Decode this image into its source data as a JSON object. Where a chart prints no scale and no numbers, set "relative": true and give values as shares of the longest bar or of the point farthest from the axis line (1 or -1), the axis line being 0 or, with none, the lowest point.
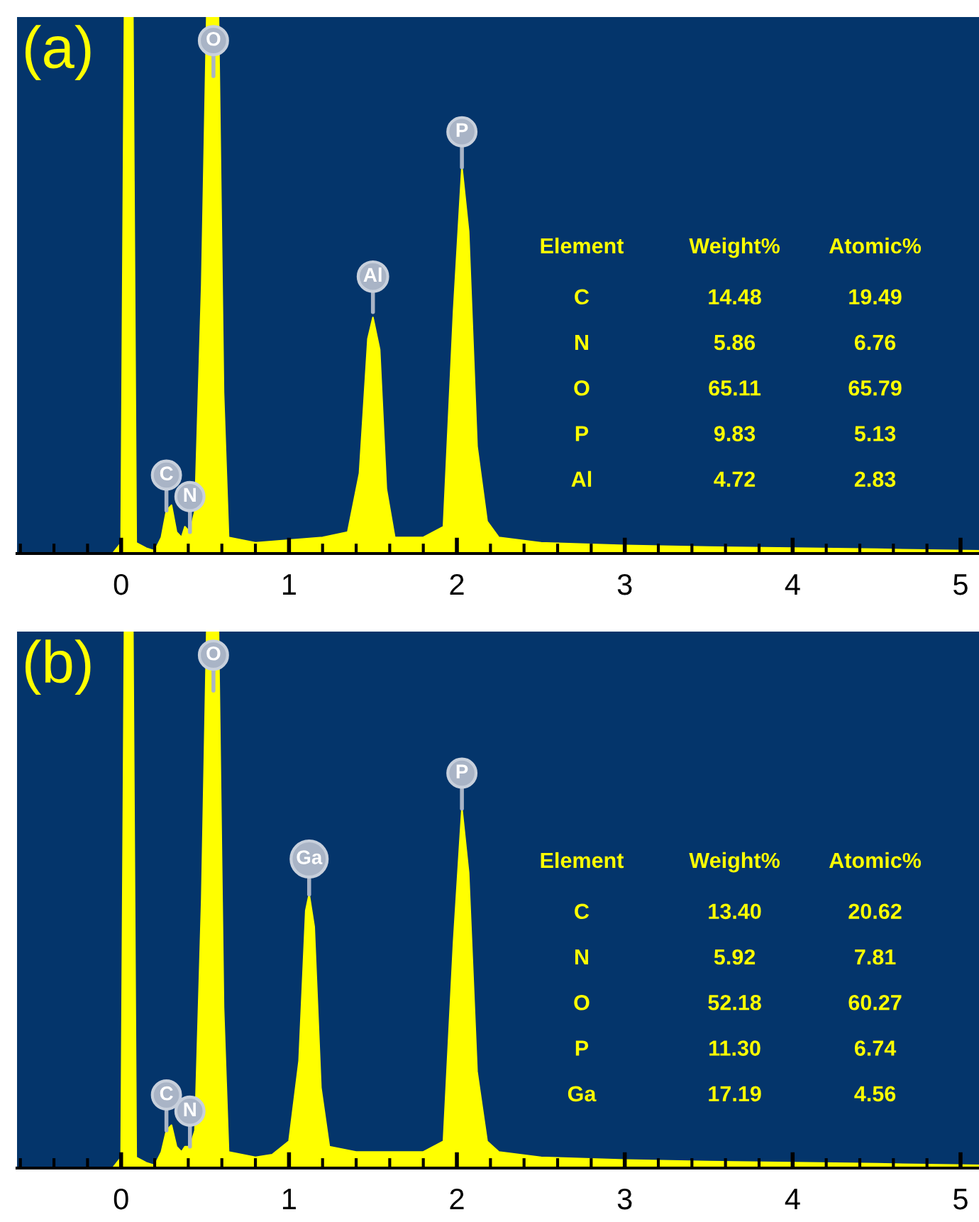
{
  "chart_data": [
    {
      "type": "area",
      "title": "(a)",
      "relative": true,
      "color": "#ffff00",
      "x": [
        -0.62,
        -0.05,
        0.0,
        0.02,
        0.07,
        0.09,
        0.15,
        0.2,
        0.24,
        0.27,
        0.3,
        0.33,
        0.36,
        0.38,
        0.41,
        0.44,
        0.48,
        0.51,
        0.58,
        0.61,
        0.64,
        0.8,
        1.0,
        1.2,
        1.35,
        1.42,
        1.47,
        1.5,
        1.54,
        1.58,
        1.63,
        1.8,
        1.92,
        1.98,
        2.03,
        2.07,
        2.12,
        2.18,
        2.25,
        2.5,
        3.0,
        3.5,
        4.0,
        4.5,
        5.11
      ],
      "values": [
        0,
        0,
        0.02,
        1.0,
        1.0,
        0.02,
        0.01,
        0.005,
        0.03,
        0.08,
        0.09,
        0.04,
        0.03,
        0.05,
        0.04,
        0.08,
        0.5,
        1.0,
        1.0,
        0.3,
        0.03,
        0.02,
        0.025,
        0.03,
        0.04,
        0.15,
        0.4,
        0.44,
        0.38,
        0.12,
        0.03,
        0.03,
        0.05,
        0.45,
        0.72,
        0.6,
        0.2,
        0.06,
        0.03,
        0.02,
        0.015,
        0.012,
        0.01,
        0.008,
        0.005
      ],
      "xlim": [
        -0.62,
        5.11
      ],
      "xticks": [
        0,
        1,
        2,
        3,
        4,
        5
      ],
      "tick_labels": "x",
      "annotations": [
        {
          "text": "O",
          "x": 0.55,
          "y": 0.89
        },
        {
          "text": "C",
          "x": 0.27,
          "y": 0.08
        },
        {
          "text": "N",
          "x": 0.41,
          "y": 0.04
        },
        {
          "text": "Al",
          "x": 1.5,
          "y": 0.45
        },
        {
          "text": "P",
          "x": 2.03,
          "y": 0.72
        },
        "Element",
        "Weight%",
        "Atomic%",
        "C",
        "14.48",
        "19.49",
        "N",
        "5.86",
        "6.76",
        "O",
        "65.11",
        "65.79",
        "P",
        "9.83",
        "5.13",
        "Al",
        "4.72",
        "2.83"
      ]
    },
    {
      "type": "area",
      "title": "(b)",
      "relative": true,
      "color": "#ffff00",
      "x": [
        -0.62,
        -0.05,
        0.0,
        0.02,
        0.07,
        0.09,
        0.15,
        0.2,
        0.24,
        0.27,
        0.3,
        0.33,
        0.36,
        0.38,
        0.41,
        0.44,
        0.48,
        0.51,
        0.58,
        0.61,
        0.64,
        0.8,
        0.9,
        1.0,
        1.06,
        1.1,
        1.12,
        1.15,
        1.19,
        1.24,
        1.4,
        1.6,
        1.8,
        1.92,
        1.98,
        2.03,
        2.07,
        2.12,
        2.18,
        2.25,
        2.5,
        3.0,
        3.5,
        4.0,
        4.5,
        5.11
      ],
      "values": [
        0,
        0,
        0.02,
        1.0,
        1.0,
        0.02,
        0.01,
        0.005,
        0.03,
        0.07,
        0.08,
        0.04,
        0.03,
        0.04,
        0.04,
        0.07,
        0.5,
        1.0,
        1.0,
        0.3,
        0.03,
        0.02,
        0.025,
        0.05,
        0.2,
        0.48,
        0.51,
        0.45,
        0.15,
        0.04,
        0.03,
        0.03,
        0.03,
        0.05,
        0.42,
        0.67,
        0.55,
        0.18,
        0.05,
        0.03,
        0.02,
        0.015,
        0.012,
        0.01,
        0.008,
        0.005
      ],
      "xlim": [
        -0.62,
        5.11
      ],
      "xticks": [
        0,
        1,
        2,
        3,
        4,
        5
      ],
      "tick_labels": "x",
      "annotations": [
        {
          "text": "O",
          "x": 0.55,
          "y": 0.89
        },
        {
          "text": "C",
          "x": 0.27,
          "y": 0.07
        },
        {
          "text": "N",
          "x": 0.41,
          "y": 0.04
        },
        {
          "text": "Ga",
          "x": 1.12,
          "y": 0.51
        },
        {
          "text": "P",
          "x": 2.03,
          "y": 0.67
        },
        "Element",
        "Weight%",
        "Atomic%",
        "C",
        "13.40",
        "20.62",
        "N",
        "5.92",
        "7.81",
        "O",
        "52.18",
        "60.27",
        "P",
        "11.30",
        "6.74",
        "Ga",
        "17.19",
        "4.56"
      ]
    }
  ]
}
